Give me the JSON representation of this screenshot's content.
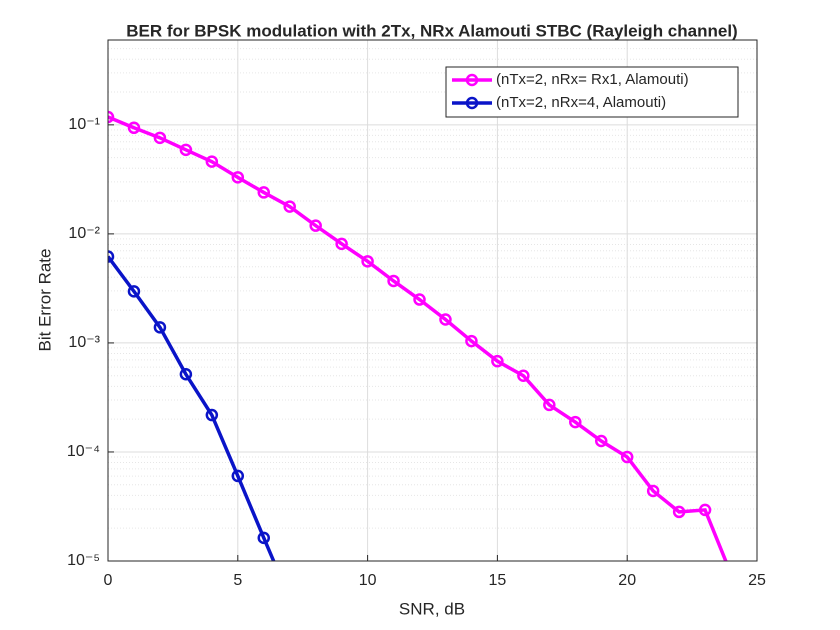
{
  "chart_data": {
    "type": "line",
    "title": "BER for BPSK modulation with 2Tx, NRx Alamouti STBC (Rayleigh channel)",
    "x_label": "SNR, dB",
    "y_label": "Bit Error Rate",
    "x": [
      0,
      1,
      2,
      3,
      4,
      5,
      6,
      7,
      8,
      9,
      10,
      11,
      12,
      13,
      14,
      15,
      16,
      17,
      18,
      19,
      20,
      21,
      22,
      23,
      24
    ],
    "series": [
      {
        "name": "(nTx=2, nRx= Rx1, Alamouti)",
        "color": "#ff00ff",
        "values": [
          0.118,
          0.094,
          0.076,
          0.059,
          0.046,
          0.033,
          0.024,
          0.0178,
          0.0119,
          0.0081,
          0.0056,
          0.0037,
          0.0025,
          0.00164,
          0.00104,
          0.00068,
          0.0005,
          0.00027,
          0.000188,
          0.000126,
          8.98e-05,
          4.39e-05,
          2.82e-05,
          2.94e-05,
          7.6e-06
        ]
      },
      {
        "name": "(nTx=2, nRx=4, Alamouti)",
        "color": "#0a14c8",
        "values": [
          0.0062,
          0.00297,
          0.00139,
          0.000516,
          0.000218,
          6.03e-05,
          1.63e-05,
          4.5e-06,
          null,
          null,
          null,
          null,
          null,
          null,
          null,
          null,
          null,
          null,
          null,
          null,
          null,
          null,
          null,
          null,
          null
        ]
      }
    ],
    "xlim": [
      0,
      25
    ],
    "xticks": [
      0,
      5,
      10,
      15,
      20,
      25
    ],
    "ylim": [
      1e-05,
      0.6
    ],
    "y_scale": "log",
    "yticks": [
      {
        "value": 1e-05,
        "label": "10⁻⁵"
      },
      {
        "value": 0.0001,
        "label": "10⁻⁴"
      },
      {
        "value": 0.001,
        "label": "10⁻³"
      },
      {
        "value": 0.01,
        "label": "10⁻²"
      },
      {
        "value": 0.1,
        "label": "10⁻¹"
      }
    ],
    "grid": true,
    "minor_grid": true,
    "legend": "top-right",
    "marker": "circle"
  }
}
